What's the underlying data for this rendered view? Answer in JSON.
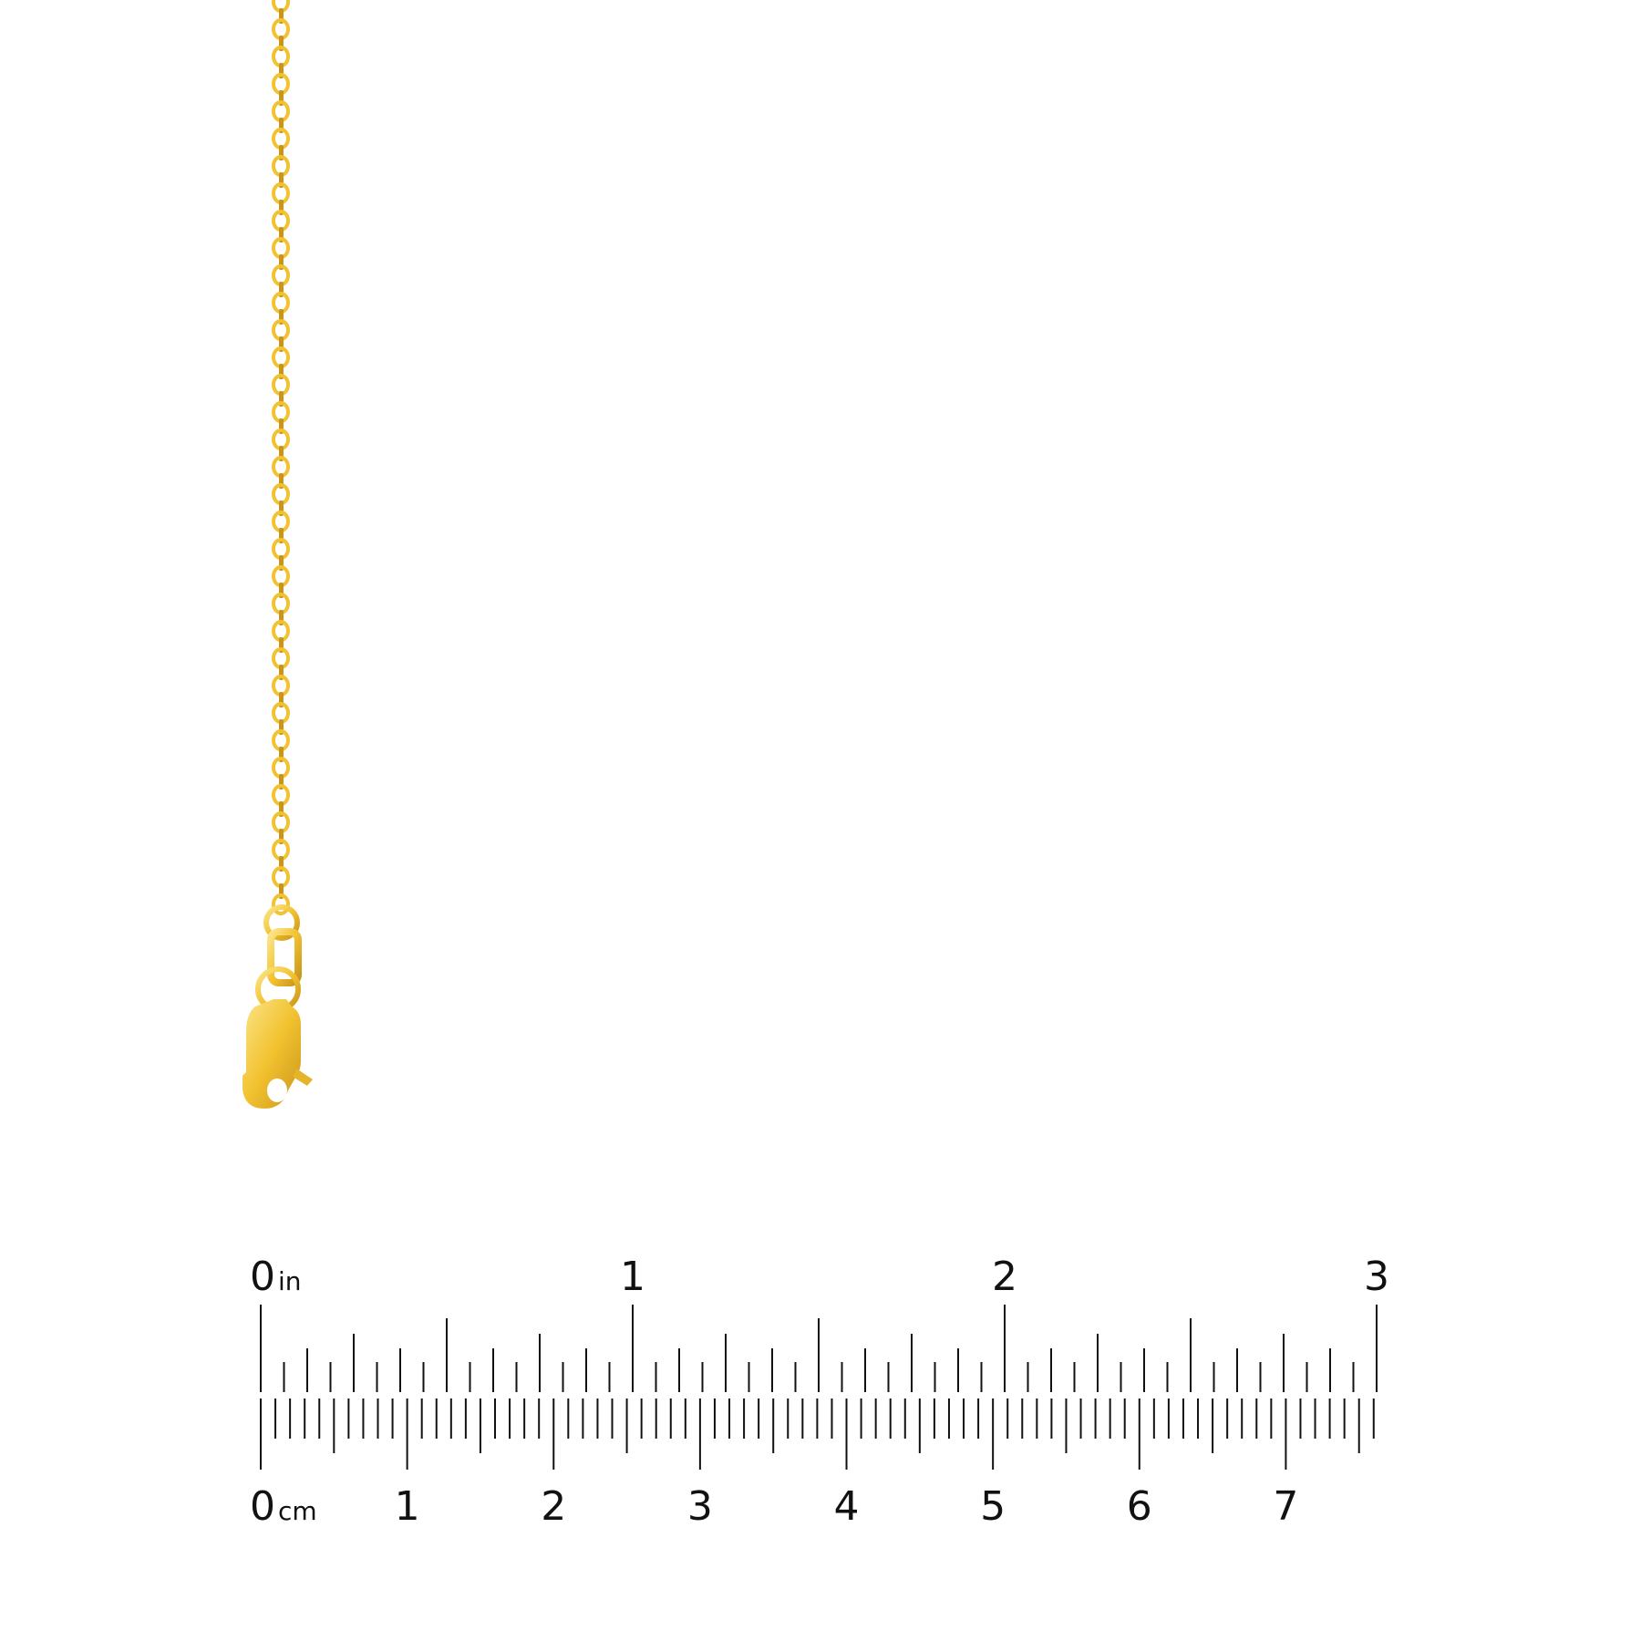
{
  "product": {
    "subject": "gold cable chain with lobster clasp",
    "metal_color": "#f2c230",
    "metal_highlight": "#fbe58a",
    "metal_shadow": "#c9951a"
  },
  "ruler": {
    "color": "#111111",
    "inch": {
      "unit": "in",
      "labels": [
        "0",
        "1",
        "2",
        "3"
      ],
      "max": 3,
      "subdivisions": 16
    },
    "cm": {
      "unit": "cm",
      "labels": [
        "0",
        "1",
        "2",
        "3",
        "4",
        "5",
        "6",
        "7"
      ],
      "max_mm": 76
    }
  }
}
